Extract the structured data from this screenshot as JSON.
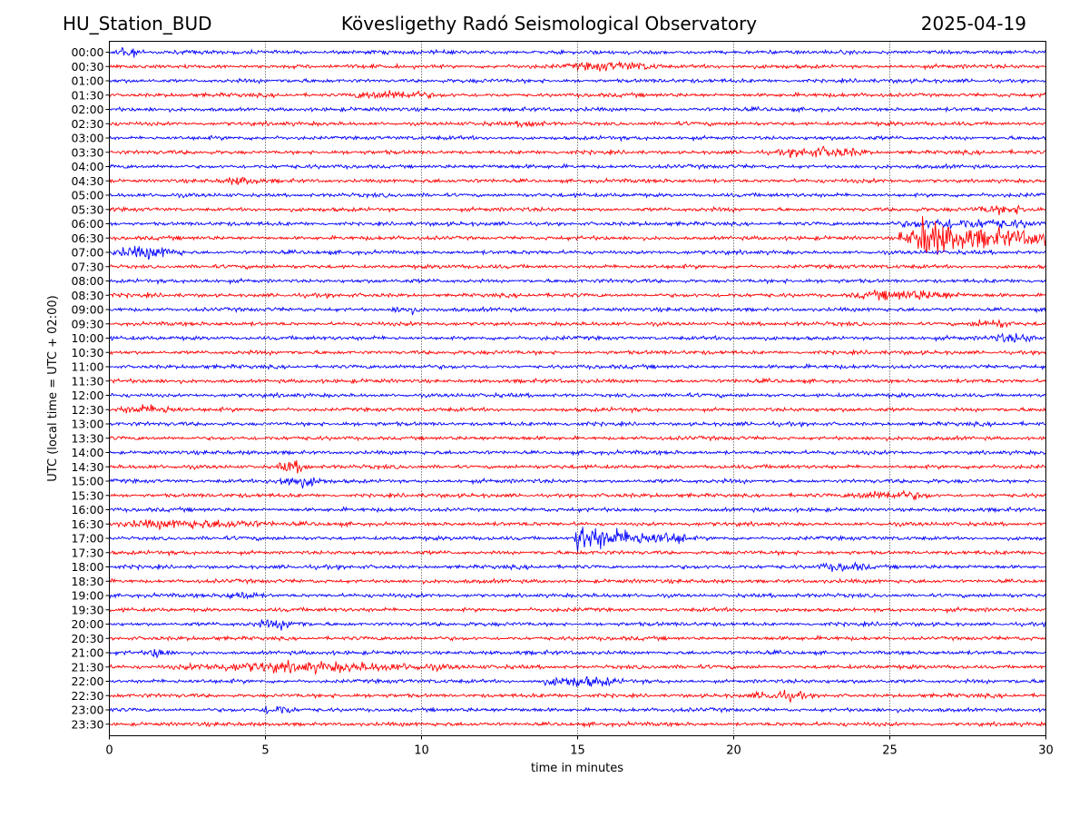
{
  "header": {
    "station": "HU_Station_BUD",
    "title": "Kövesligethy Radó Seismological Observatory",
    "date": "2025-04-19"
  },
  "chart_data": {
    "type": "line",
    "xlabel": "time in minutes",
    "ylabel": "UTC (local time = UTC + 02:00)",
    "xlim": [
      0,
      30
    ],
    "x_ticks": [
      0,
      5,
      10,
      15,
      20,
      25,
      30
    ],
    "vertical_grid": "dotted at each x tick",
    "row_labels": [
      "00:00",
      "00:30",
      "01:00",
      "01:30",
      "02:00",
      "02:30",
      "03:00",
      "03:30",
      "04:00",
      "04:30",
      "05:00",
      "05:30",
      "06:00",
      "06:30",
      "07:00",
      "07:30",
      "08:00",
      "08:30",
      "09:00",
      "09:30",
      "10:00",
      "10:30",
      "11:00",
      "11:30",
      "12:00",
      "12:30",
      "13:00",
      "13:30",
      "14:00",
      "14:30",
      "15:00",
      "15:30",
      "16:00",
      "16:30",
      "17:00",
      "17:30",
      "18:00",
      "18:30",
      "19:00",
      "19:30",
      "20:00",
      "20:30",
      "21:00",
      "21:30",
      "22:00",
      "22:30",
      "23:00",
      "23:30"
    ],
    "trace_colors": [
      "#0000ff",
      "#ff0000"
    ],
    "events": [
      {
        "row": "13",
        "start": 25.3,
        "end": 30,
        "peak": 1.35,
        "spike_at": 26.0
      },
      {
        "row": "34",
        "start": 14.9,
        "end": 18.5,
        "peak": 0.9,
        "spike_at": 15.0
      },
      {
        "row": "0",
        "start": 0.1,
        "end": 1.0,
        "peak": 0.35
      },
      {
        "row": "14",
        "start": 0.0,
        "end": 2.5,
        "peak": 0.35
      },
      {
        "row": "29",
        "start": 5.3,
        "end": 6.5,
        "peak": 0.35
      },
      {
        "row": "30",
        "start": 5.0,
        "end": 7.0,
        "peak": 0.32
      },
      {
        "row": "44",
        "start": 13.6,
        "end": 16.5,
        "peak": 0.3
      },
      {
        "row": "43",
        "start": 1.5,
        "end": 11.5,
        "peak": 0.28
      },
      {
        "row": "3",
        "start": 7.5,
        "end": 10.5,
        "peak": 0.25
      },
      {
        "row": "7",
        "start": 21.3,
        "end": 24.5,
        "peak": 0.28
      },
      {
        "row": "17",
        "start": 23.5,
        "end": 27.5,
        "peak": 0.28
      },
      {
        "row": "33",
        "start": 0.0,
        "end": 5.5,
        "peak": 0.26
      },
      {
        "row": "42",
        "start": 1.2,
        "end": 2.0,
        "peak": 0.32
      },
      {
        "row": "45",
        "start": 20.5,
        "end": 22.5,
        "peak": 0.25
      },
      {
        "row": "46",
        "start": 4.8,
        "end": 6.0,
        "peak": 0.28
      },
      {
        "row": "1",
        "start": 14.5,
        "end": 18.0,
        "peak": 0.24
      },
      {
        "row": "5",
        "start": 13.0,
        "end": 14.0,
        "peak": 0.2
      },
      {
        "row": "31",
        "start": 23.5,
        "end": 26.5,
        "peak": 0.24
      },
      {
        "row": "36",
        "start": 22.5,
        "end": 24.5,
        "peak": 0.24
      },
      {
        "row": "12",
        "start": 25.0,
        "end": 30.0,
        "peak": 0.3
      },
      {
        "row": "11",
        "start": 27.5,
        "end": 30.0,
        "peak": 0.22
      },
      {
        "row": "20",
        "start": 28.0,
        "end": 30.0,
        "peak": 0.22
      },
      {
        "row": "19",
        "start": 27.5,
        "end": 29.0,
        "peak": 0.24
      },
      {
        "row": "25",
        "start": 0.0,
        "end": 2.5,
        "peak": 0.24
      },
      {
        "row": "18",
        "start": 9.0,
        "end": 10.0,
        "peak": 0.22
      },
      {
        "row": "9",
        "start": 3.5,
        "end": 5.0,
        "peak": 0.2
      },
      {
        "row": "38",
        "start": 3.5,
        "end": 5.0,
        "peak": 0.2
      },
      {
        "row": "40",
        "start": 4.5,
        "end": 6.5,
        "peak": 0.22
      }
    ]
  }
}
